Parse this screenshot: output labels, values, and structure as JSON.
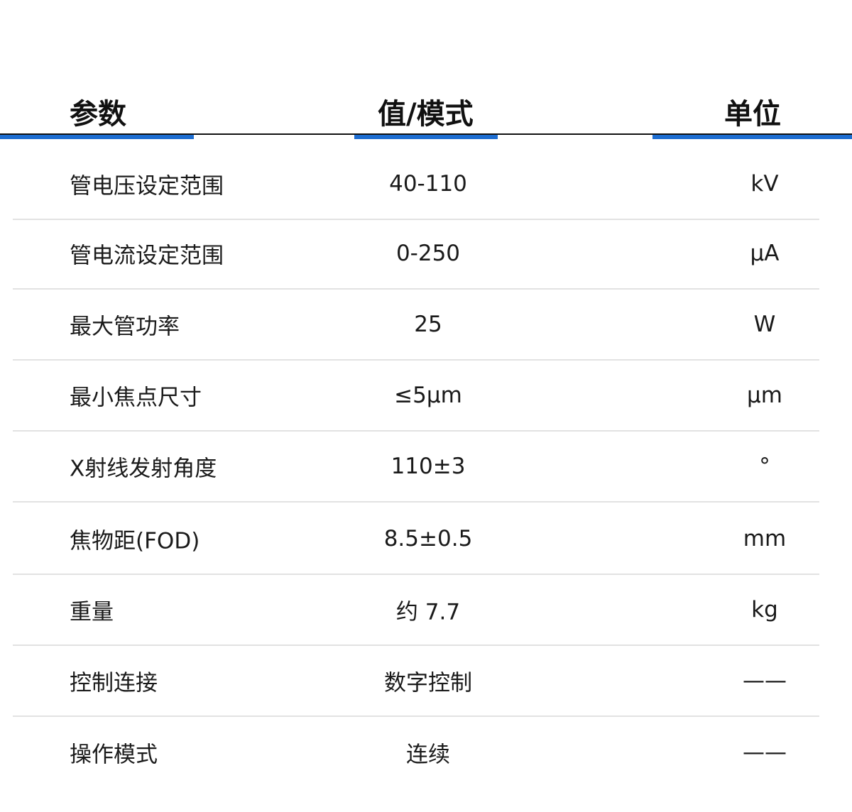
{
  "header": {
    "param": "参数",
    "value": "值/模式",
    "unit": "单位"
  },
  "accent_color": "#1d6dd1",
  "rows": [
    {
      "param": "管电压设定范围",
      "value": "40-110",
      "unit": "kV"
    },
    {
      "param": "管电流设定范围",
      "value": "0-250",
      "unit": "μA"
    },
    {
      "param": "最大管功率",
      "value": "25",
      "unit": "W"
    },
    {
      "param": "最小焦点尺寸",
      "value": "≤5μm",
      "unit": "μm"
    },
    {
      "param": "X射线发射角度",
      "value": "110±3",
      "unit": "°"
    },
    {
      "param": "焦物距(FOD)",
      "value": "8.5±0.5",
      "unit": "mm"
    },
    {
      "param": "重量",
      "value": "约 7.7",
      "unit": "kg"
    },
    {
      "param": "控制连接",
      "value": "数字控制",
      "unit": "——"
    },
    {
      "param": "操作模式",
      "value": "连续",
      "unit": "——"
    }
  ]
}
